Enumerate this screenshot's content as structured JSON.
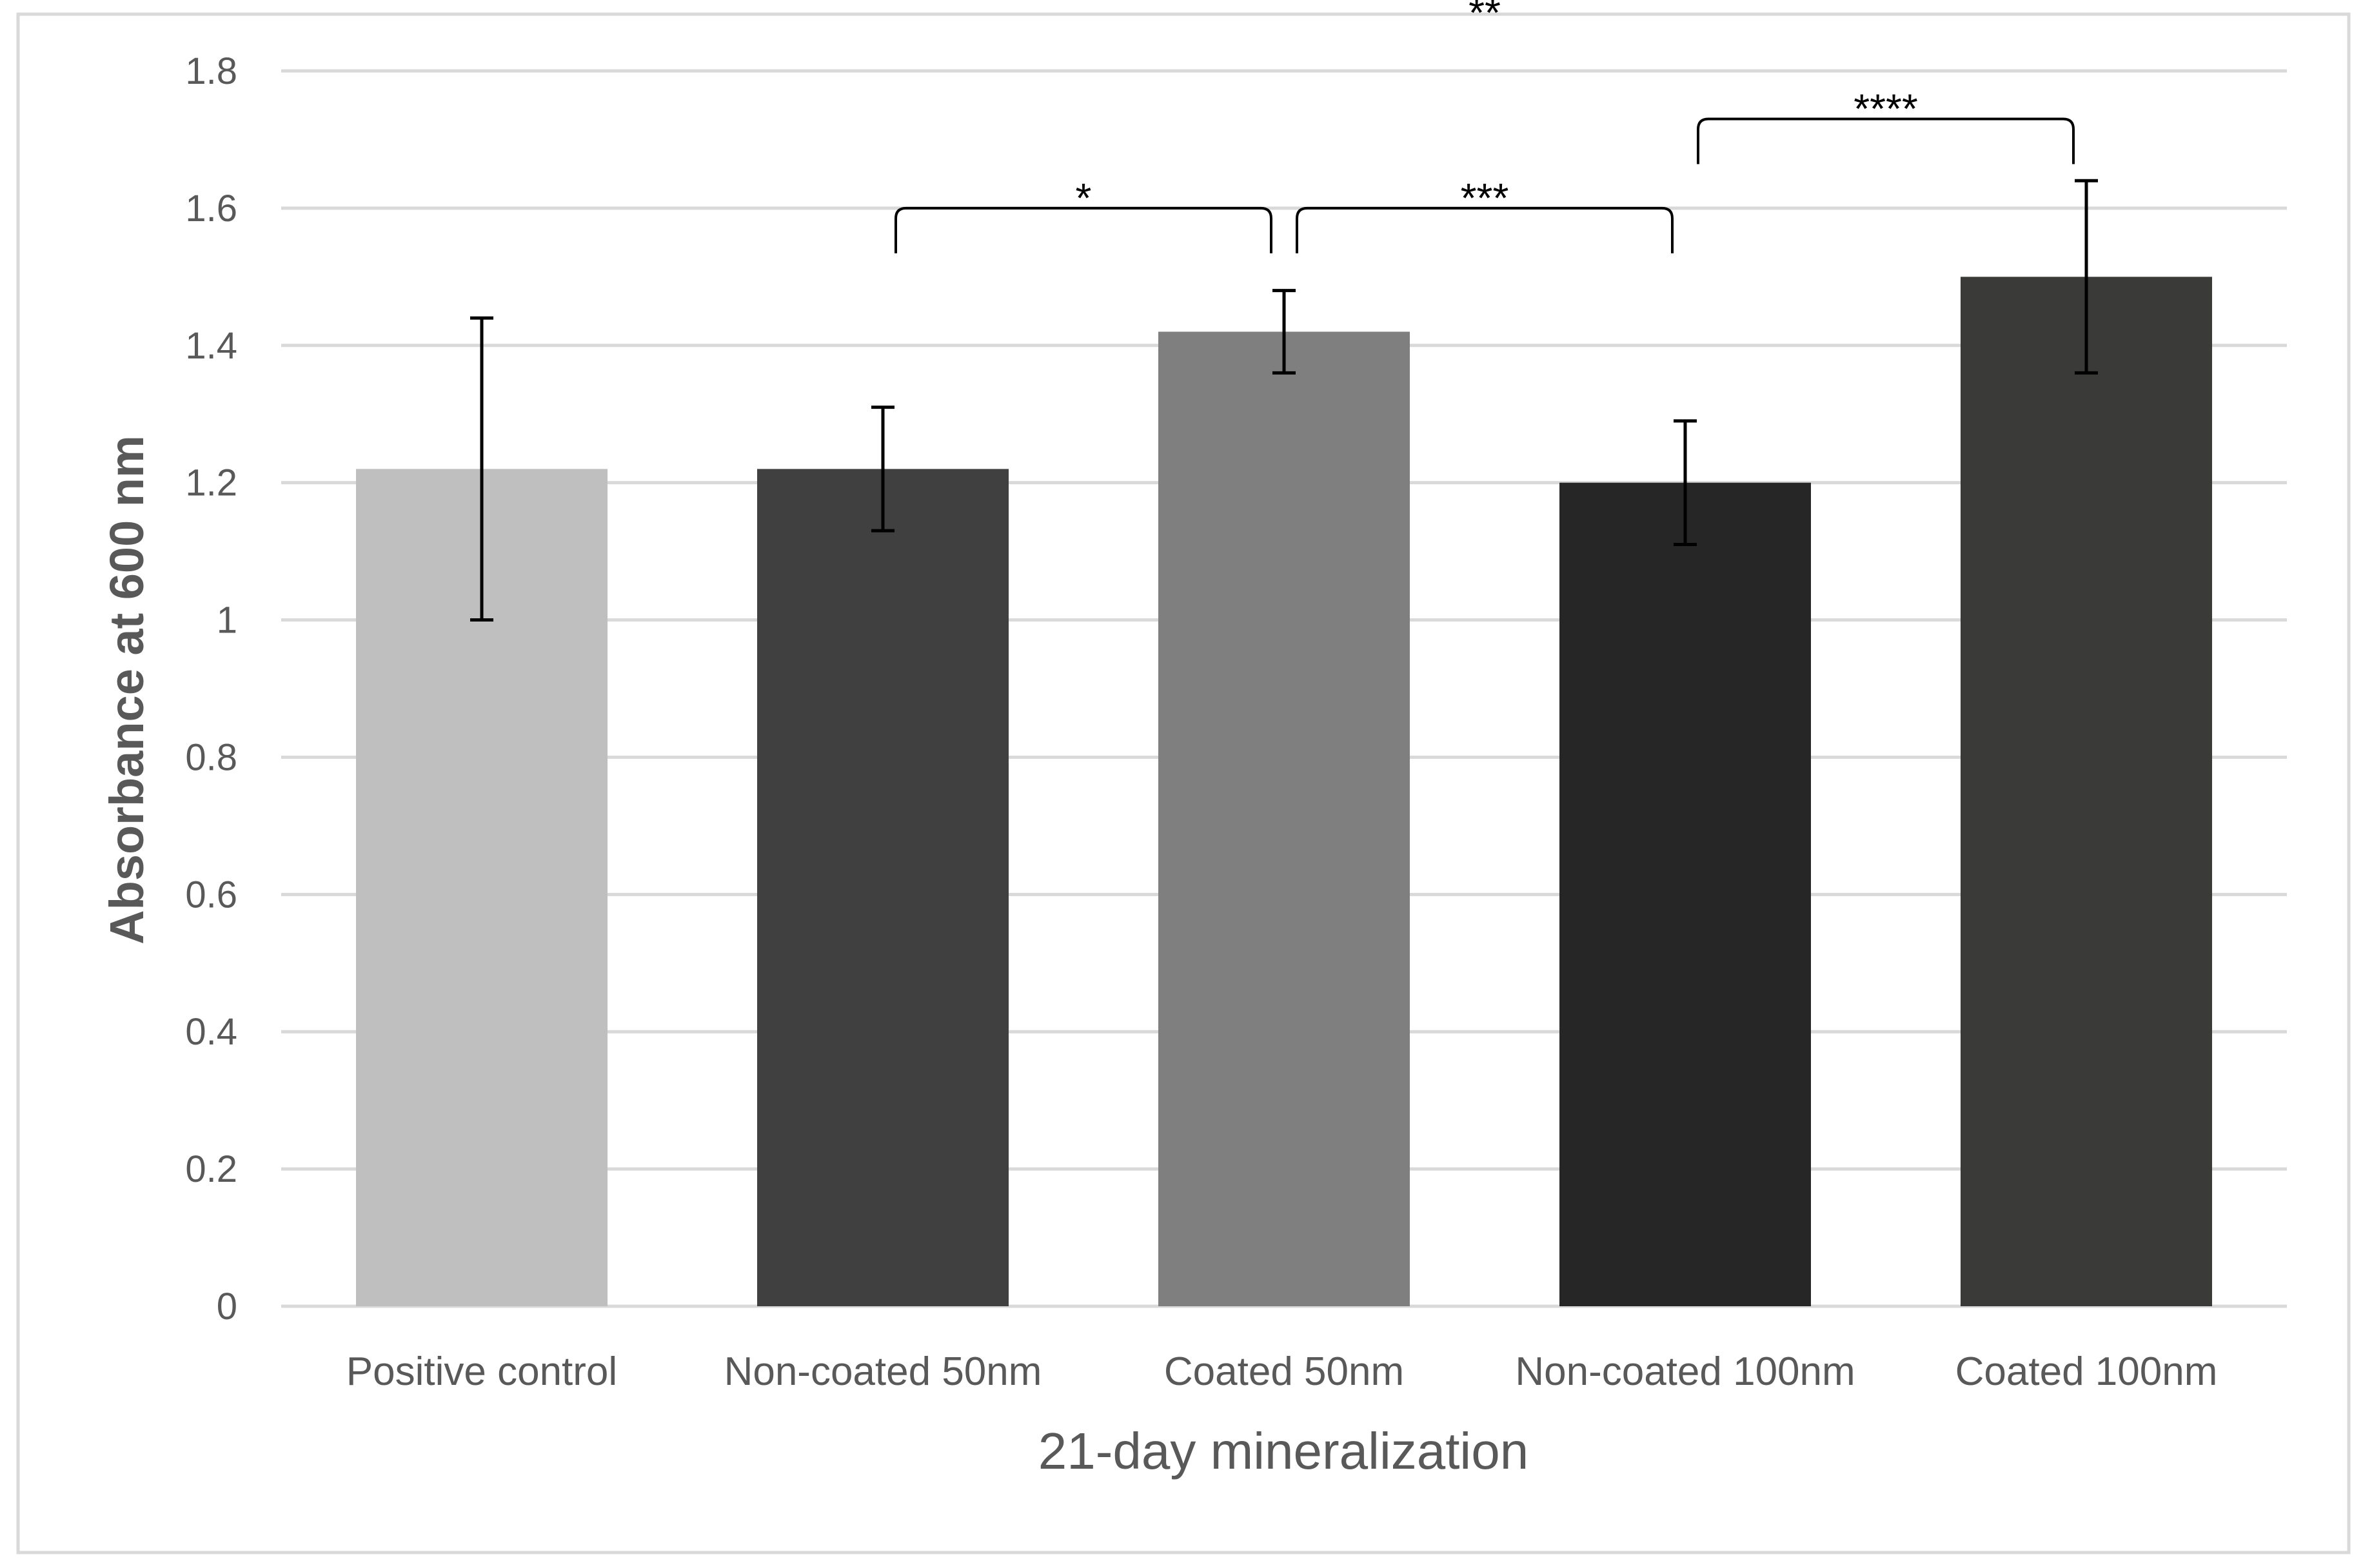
{
  "chart_data": {
    "type": "bar",
    "title": "",
    "xlabel": "21-day mineralization",
    "ylabel": "Absorbance at 600 nm",
    "ylim": [
      0,
      1.8
    ],
    "yticks": [
      0,
      0.2,
      0.4,
      0.6,
      0.8,
      1,
      1.2,
      1.4,
      1.6,
      1.8
    ],
    "ytick_labels": [
      "0",
      "0.2",
      "0.4",
      "0.6",
      "0.8",
      "1",
      "1.2",
      "1.4",
      "1.6",
      "1.8"
    ],
    "grid": true,
    "legend": "none",
    "categories": [
      "Positive control",
      "Non-coated 50nm",
      "Coated 50nm",
      "Non-coated 100nm",
      "Coated 100nm"
    ],
    "values": [
      1.22,
      1.22,
      1.42,
      1.2,
      1.5
    ],
    "error_low": [
      1.0,
      1.13,
      1.36,
      1.11,
      1.36
    ],
    "error_high": [
      1.44,
      1.31,
      1.48,
      1.29,
      1.64
    ],
    "colors": [
      "#bfbfbf",
      "#404040",
      "#7f7f7f",
      "#262626",
      "#3a3a38"
    ],
    "significance": [
      {
        "label": "*",
        "from": 1,
        "to": 2,
        "y": 1.6
      },
      {
        "label": "***",
        "from": 2,
        "to": 3,
        "y": 1.6
      },
      {
        "label": "****",
        "from": 3,
        "to": 4,
        "y": 1.73
      },
      {
        "label": "**",
        "from": 1,
        "to": 4,
        "y": 1.87,
        "bracket": false
      }
    ]
  }
}
